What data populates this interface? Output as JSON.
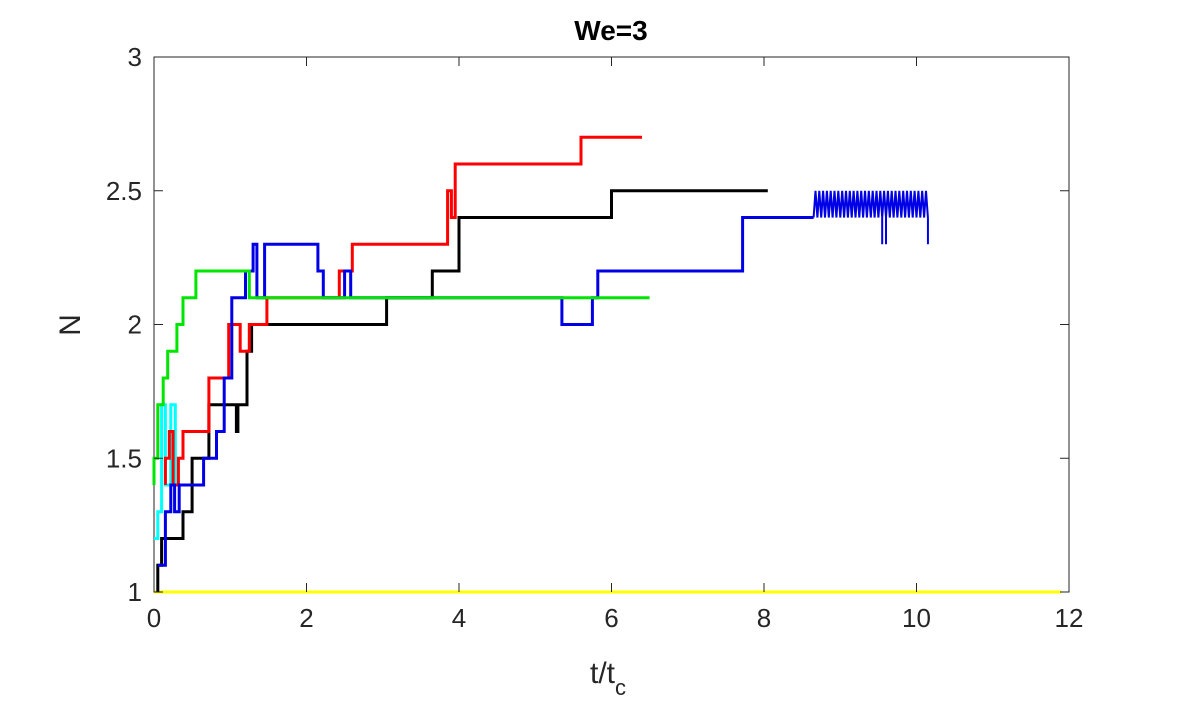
{
  "chart_data": {
    "type": "line",
    "title": "We=3",
    "xlabel_main": "t/t",
    "xlabel_sub": "c",
    "ylabel": "N",
    "xlim": [
      0,
      12
    ],
    "ylim": [
      1,
      3
    ],
    "xticks": [
      0,
      2,
      4,
      6,
      8,
      10,
      12
    ],
    "yticks": [
      1,
      1.5,
      2,
      2.5,
      3
    ],
    "xtick_labels": [
      "0",
      "2",
      "4",
      "6",
      "8",
      "10",
      "12"
    ],
    "ytick_labels": [
      "1",
      "1.5",
      "2",
      "2.5",
      "3"
    ],
    "grid": false,
    "series": [
      {
        "color": "#ffff00",
        "x": [
          0,
          11.9
        ],
        "y": [
          1,
          1
        ]
      },
      {
        "color": "#00ffff",
        "x": [
          0.0,
          0.05,
          0.05,
          0.1,
          0.1,
          0.15,
          0.15,
          0.22,
          0.22,
          0.28,
          0.28,
          0.32
        ],
        "y": [
          1.2,
          1.2,
          1.3,
          1.3,
          1.7,
          1.7,
          1.4,
          1.4,
          1.7,
          1.7,
          1.4,
          1.4
        ]
      },
      {
        "color": "#000000",
        "x": [
          0.05,
          0.05,
          0.1,
          0.1,
          0.2,
          0.2,
          0.38,
          0.38,
          0.5,
          0.5,
          0.72,
          0.72,
          1.08,
          1.08,
          1.1,
          1.1,
          1.22,
          1.22,
          1.28,
          1.28,
          3.05,
          3.05,
          3.65,
          3.65,
          4.0,
          4.0,
          6.0,
          6.0,
          8.05
        ],
        "y": [
          1.0,
          1.1,
          1.1,
          1.2,
          1.2,
          1.2,
          1.2,
          1.3,
          1.3,
          1.5,
          1.5,
          1.7,
          1.7,
          1.6,
          1.6,
          1.7,
          1.7,
          1.9,
          1.9,
          2.0,
          2.0,
          2.1,
          2.1,
          2.2,
          2.2,
          2.4,
          2.4,
          2.5,
          2.5
        ]
      },
      {
        "color": "#ff0000",
        "x": [
          0.15,
          0.15,
          0.2,
          0.2,
          0.25,
          0.25,
          0.32,
          0.32,
          0.38,
          0.38,
          0.72,
          0.72,
          0.98,
          0.98,
          1.13,
          1.13,
          1.25,
          1.25,
          1.48,
          1.48,
          2.43,
          2.43,
          2.6,
          2.6,
          3.85,
          3.85,
          3.9,
          3.9,
          3.95,
          3.95,
          5.6,
          5.6,
          6.4
        ],
        "y": [
          1.4,
          1.5,
          1.5,
          1.6,
          1.6,
          1.4,
          1.4,
          1.5,
          1.5,
          1.6,
          1.6,
          1.8,
          1.8,
          2.0,
          2.0,
          1.9,
          1.9,
          2.0,
          2.0,
          2.1,
          2.1,
          2.2,
          2.2,
          2.3,
          2.3,
          2.5,
          2.5,
          2.4,
          2.4,
          2.6,
          2.6,
          2.7,
          2.7
        ]
      },
      {
        "color": "#0000e6",
        "x": [
          0.05,
          0.05,
          0.15,
          0.15,
          0.22,
          0.22,
          0.27,
          0.27,
          0.33,
          0.33,
          0.42,
          0.42,
          0.65,
          0.65,
          0.82,
          0.82,
          0.92,
          0.92,
          1.02,
          1.02,
          1.2,
          1.2,
          1.3,
          1.3,
          1.35,
          1.35,
          1.45,
          1.45,
          2.15,
          2.15,
          2.22,
          2.22,
          2.5,
          2.5,
          2.58,
          2.58,
          2.98,
          2.98,
          5.35,
          5.35,
          5.75,
          5.75,
          5.82,
          5.82,
          6.08,
          6.08,
          7.72,
          7.72,
          8.65
        ],
        "y": [
          1.1,
          1.1,
          1.1,
          1.3,
          1.3,
          1.4,
          1.4,
          1.3,
          1.3,
          1.4,
          1.4,
          1.4,
          1.4,
          1.5,
          1.5,
          1.6,
          1.6,
          1.8,
          1.8,
          2.1,
          2.1,
          2.2,
          2.2,
          2.3,
          2.3,
          2.1,
          2.1,
          2.3,
          2.3,
          2.2,
          2.2,
          2.1,
          2.1,
          2.2,
          2.2,
          2.1,
          2.1,
          2.1,
          2.1,
          2.0,
          2.0,
          2.1,
          2.1,
          2.2,
          2.2,
          2.2,
          2.2,
          2.4,
          2.4
        ]
      },
      {
        "color": "#00e600",
        "x": [
          0.0,
          0.0,
          0.05,
          0.05,
          0.12,
          0.12,
          0.18,
          0.18,
          0.22,
          0.22,
          0.3,
          0.3,
          0.38,
          0.38,
          0.55,
          0.55,
          1.25,
          1.25,
          6.5
        ],
        "y": [
          1.4,
          1.5,
          1.5,
          1.7,
          1.7,
          1.8,
          1.8,
          1.9,
          1.9,
          1.9,
          1.9,
          2.0,
          2.0,
          2.1,
          2.1,
          2.2,
          2.2,
          2.1,
          2.1
        ]
      }
    ],
    "oscillation": {
      "color": "#0000e6",
      "x_start": 8.65,
      "x_end": 10.15,
      "y_low": 2.4,
      "y_high": 2.5,
      "dips_to": 2.3,
      "dip_x": [
        9.55,
        9.6,
        10.15
      ]
    }
  }
}
